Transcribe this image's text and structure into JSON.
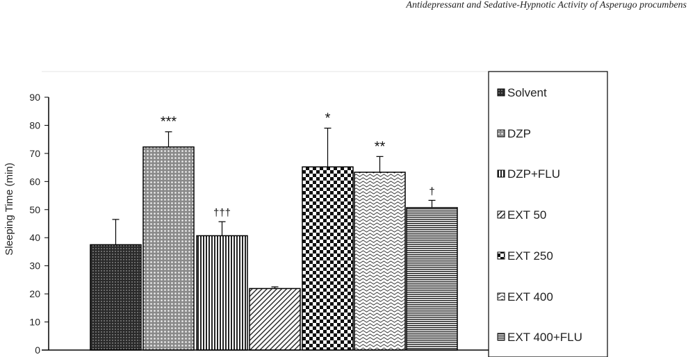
{
  "page_header": "Antidepressant and Sedative-Hypnotic Activity of Asperugo procumbens",
  "chart_data": {
    "type": "bar",
    "title": "",
    "xlabel": "",
    "ylabel": "Sleeping Time (min)",
    "ylim": [
      0,
      90
    ],
    "yticks": [
      0,
      10,
      20,
      30,
      40,
      50,
      60,
      70,
      80,
      90
    ],
    "grid": false,
    "legend_position": "right",
    "categories": [
      "Solvent",
      "DZP",
      "DZP+FLU",
      "EXT 50",
      "EXT 250",
      "EXT 400",
      "EXT 400+FLU"
    ],
    "values": [
      37.5,
      72.3,
      40.7,
      21.9,
      65.2,
      63.3,
      50.7
    ],
    "errors": [
      9,
      5.4,
      5,
      0.6,
      13.8,
      5.6,
      2.6
    ],
    "annotations": [
      "",
      "***",
      "†††",
      "",
      "*",
      "**",
      "†"
    ],
    "legend": [
      "Solvent",
      "DZP",
      "DZP+FLU",
      "EXT 50",
      "EXT 250",
      "EXT 400",
      "EXT 400+FLU"
    ],
    "patterns": [
      "dots-dark",
      "dots-light",
      "vertical-lines",
      "diagonal-lines",
      "checker",
      "waves",
      "horizontal-lines"
    ]
  }
}
